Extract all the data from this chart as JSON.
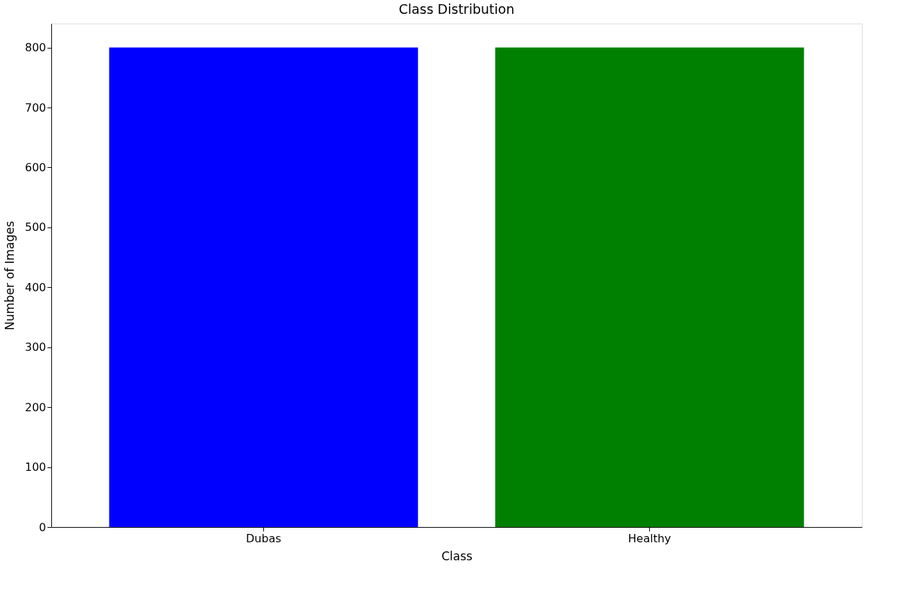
{
  "chart_data": {
    "type": "bar",
    "title": "Class Distribution",
    "xlabel": "Class",
    "ylabel": "Number of Images",
    "categories": [
      "Dubas",
      "Healthy"
    ],
    "values": [
      800,
      800
    ],
    "colors": [
      "#0000ff",
      "#008000"
    ],
    "ylim": [
      0,
      840
    ],
    "yticks": [
      0,
      100,
      200,
      300,
      400,
      500,
      600,
      700,
      800
    ],
    "grid": false,
    "legend": false
  }
}
